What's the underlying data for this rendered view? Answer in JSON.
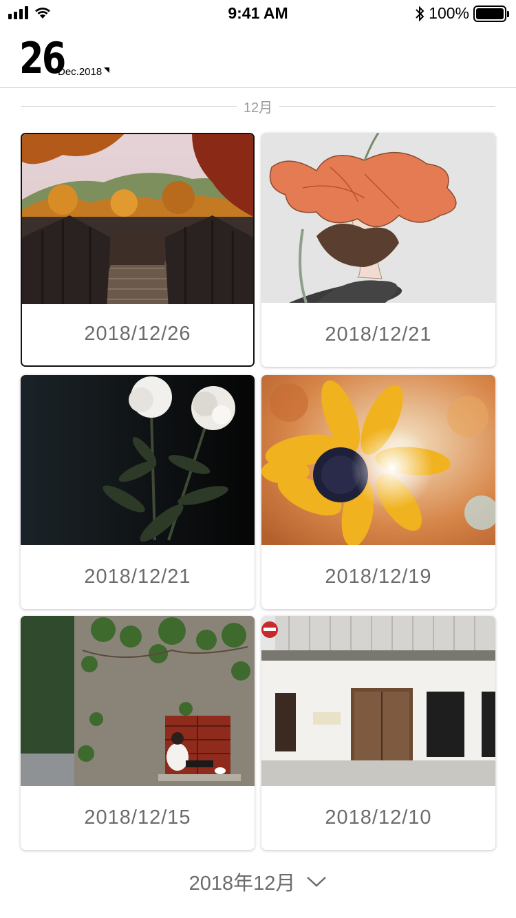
{
  "status_bar": {
    "time": "9:41 AM",
    "battery_text": "100%",
    "battery_level": 1.0
  },
  "header": {
    "day": "26",
    "month_year": "Dec.2018"
  },
  "section": {
    "title": "12月"
  },
  "photos": [
    {
      "date": "2018/12/26",
      "image": "autumn-forest-bridge",
      "selected": true
    },
    {
      "date": "2018/12/21",
      "image": "illustration-flower-head",
      "selected": false
    },
    {
      "date": "2018/12/21",
      "image": "white-peonies",
      "selected": false
    },
    {
      "date": "2018/12/19",
      "image": "sunflower-sunlight",
      "selected": false
    },
    {
      "date": "2018/12/15",
      "image": "ivy-wall-window",
      "selected": false
    },
    {
      "date": "2018/12/10",
      "image": "white-building-door",
      "selected": false
    }
  ],
  "footer": {
    "month_label": "2018年12月"
  },
  "colors": {
    "text_gray": "#6b6b6b",
    "section_gray": "#9a9a9a",
    "selected_border": "#111111"
  }
}
